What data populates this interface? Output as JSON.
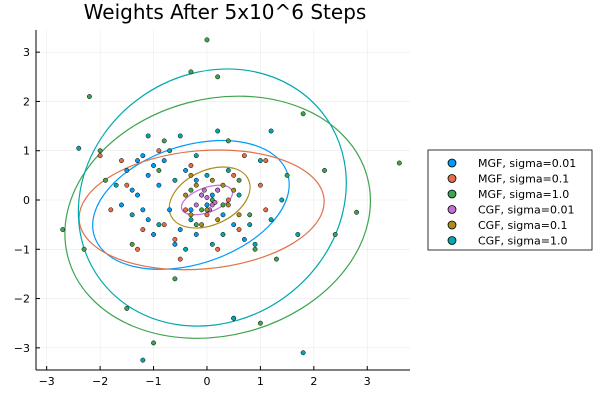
{
  "chart_data": {
    "type": "scatter",
    "title": "Weights After 5x10^6 Steps",
    "xlabel": "",
    "ylabel": "",
    "xlim": [
      -3.2,
      3.8
    ],
    "ylim": [
      -3.45,
      3.45
    ],
    "xticks": [
      -3,
      -2,
      -1,
      0,
      1,
      2,
      3
    ],
    "yticks": [
      -3,
      -2,
      -1,
      0,
      1,
      2,
      3
    ],
    "grid": true,
    "legend_position": "right",
    "series": [
      {
        "name": "MGF, sigma=0.01",
        "color": "#009AFA",
        "points": [
          [
            -1.2,
            0.9
          ],
          [
            -1.0,
            0.7
          ],
          [
            -1.1,
            0.5
          ],
          [
            -0.9,
            0.3
          ],
          [
            -1.3,
            0.1
          ],
          [
            -0.7,
            -0.2
          ],
          [
            -1.1,
            -0.4
          ],
          [
            -0.5,
            -0.6
          ],
          [
            -0.3,
            -0.2
          ],
          [
            -0.8,
            0.8
          ],
          [
            -0.4,
            0.6
          ],
          [
            -0.2,
            0.4
          ],
          [
            0.0,
            -0.1
          ],
          [
            0.1,
            0.1
          ],
          [
            0.3,
            -0.3
          ],
          [
            -1.5,
            0.6
          ],
          [
            -1.4,
            0.2
          ],
          [
            -1.6,
            -0.1
          ],
          [
            -1.0,
            -0.7
          ],
          [
            -0.6,
            -0.9
          ],
          [
            0.5,
            -0.5
          ],
          [
            0.7,
            -0.8
          ],
          [
            -0.2,
            -0.7
          ],
          [
            -1.3,
            0.8
          ],
          [
            -1.2,
            -0.2
          ]
        ],
        "ellipse": {
          "center": [
            -0.3,
            -0.1
          ],
          "rx": 1.9,
          "ry": 1.2,
          "angle_deg": -18
        }
      },
      {
        "name": "MGF, sigma=0.1",
        "color": "#E36F47",
        "points": [
          [
            -1.5,
            0.3
          ],
          [
            -1.8,
            -0.2
          ],
          [
            -1.2,
            -0.6
          ],
          [
            -0.6,
            -0.8
          ],
          [
            0.2,
            -1.0
          ],
          [
            0.6,
            -0.6
          ],
          [
            1.1,
            -0.2
          ],
          [
            1.0,
            0.3
          ],
          [
            0.5,
            0.5
          ],
          [
            -0.3,
            0.7
          ],
          [
            -0.9,
            1.0
          ],
          [
            -1.6,
            0.8
          ],
          [
            0.2,
            0.2
          ],
          [
            0.0,
            -0.3
          ],
          [
            -0.4,
            -0.2
          ],
          [
            -2.0,
            0.9
          ],
          [
            -1.3,
            -1.0
          ],
          [
            1.1,
            0.8
          ],
          [
            0.7,
            0.9
          ],
          [
            -0.5,
            -1.2
          ],
          [
            0.4,
            0.0
          ],
          [
            -0.1,
            0.1
          ],
          [
            -0.8,
            -0.5
          ]
        ],
        "ellipse": {
          "center": [
            -0.1,
            -0.2
          ],
          "rx": 2.3,
          "ry": 1.2,
          "angle_deg": -5
        }
      },
      {
        "name": "MGF, sigma=1.0",
        "color": "#3EA44E",
        "points": [
          [
            -2.2,
            2.1
          ],
          [
            -2.7,
            -0.6
          ],
          [
            -2.0,
            1.0
          ],
          [
            -1.5,
            -2.2
          ],
          [
            -1.0,
            -2.9
          ],
          [
            -0.3,
            2.6
          ],
          [
            0.0,
            3.25
          ],
          [
            0.2,
            2.5
          ],
          [
            0.5,
            -2.4
          ],
          [
            1.0,
            -2.5
          ],
          [
            1.8,
            1.75
          ],
          [
            2.2,
            0.6
          ],
          [
            2.4,
            -0.7
          ],
          [
            2.8,
            -0.25
          ],
          [
            3.6,
            0.75
          ],
          [
            -0.8,
            1.2
          ],
          [
            -2.3,
            -1.0
          ],
          [
            0.4,
            1.2
          ],
          [
            1.3,
            -1.2
          ],
          [
            -1.4,
            -0.9
          ],
          [
            0.8,
            -0.3
          ],
          [
            -0.6,
            -1.6
          ],
          [
            1.5,
            0.5
          ],
          [
            -1.9,
            0.4
          ],
          [
            0.1,
            0.0
          ],
          [
            0.3,
            -0.1
          ],
          [
            0.6,
            0.4
          ],
          [
            -0.3,
            0.2
          ],
          [
            -0.1,
            -0.2
          ],
          [
            -0.9,
            0.6
          ],
          [
            -0.2,
            -0.5
          ],
          [
            0.9,
            -1.0
          ]
        ],
        "ellipse": {
          "center": [
            0.2,
            -0.35
          ],
          "rx": 2.9,
          "ry": 2.4,
          "angle_deg": -15
        }
      },
      {
        "name": "CGF, sigma=0.01",
        "color": "#C271D2",
        "points": [
          [
            0.0,
            0.05
          ],
          [
            0.1,
            -0.1
          ],
          [
            -0.1,
            0.1
          ],
          [
            0.2,
            0.2
          ],
          [
            -0.2,
            -0.1
          ],
          [
            0.05,
            -0.2
          ],
          [
            -0.05,
            0.2
          ],
          [
            0.15,
            -0.05
          ]
        ],
        "ellipse": {
          "center": [
            0.0,
            0.0
          ],
          "rx": 0.5,
          "ry": 0.25,
          "angle_deg": -20
        }
      },
      {
        "name": "CGF, sigma=0.1",
        "color": "#AC8D18",
        "points": [
          [
            0.1,
            0.4
          ],
          [
            -0.3,
            0.5
          ],
          [
            0.4,
            -0.1
          ],
          [
            0.2,
            -0.4
          ],
          [
            -0.1,
            -0.5
          ],
          [
            -0.4,
            0.1
          ],
          [
            0.3,
            0.3
          ],
          [
            0.0,
            -0.2
          ],
          [
            0.5,
            0.2
          ],
          [
            -0.2,
            0.3
          ],
          [
            0.6,
            -0.3
          ],
          [
            -0.3,
            -0.3
          ]
        ],
        "ellipse": {
          "center": [
            0.05,
            0.05
          ],
          "rx": 0.8,
          "ry": 0.55,
          "angle_deg": -25
        }
      },
      {
        "name": "CGF, sigma=1.0",
        "color": "#00A9AD",
        "points": [
          [
            -1.1,
            1.3
          ],
          [
            -0.7,
            1.0
          ],
          [
            -0.2,
            0.9
          ],
          [
            0.4,
            0.6
          ],
          [
            1.0,
            0.8
          ],
          [
            1.4,
            0.0
          ],
          [
            1.2,
            -0.4
          ],
          [
            0.8,
            -0.5
          ],
          [
            0.1,
            -0.9
          ],
          [
            -0.4,
            -1.0
          ],
          [
            -0.9,
            -0.5
          ],
          [
            -1.4,
            -0.3
          ],
          [
            -1.7,
            0.3
          ],
          [
            -2.4,
            1.05
          ],
          [
            0.5,
            -2.4
          ],
          [
            1.8,
            -3.1
          ],
          [
            -1.2,
            -3.25
          ],
          [
            0.3,
            -0.7
          ],
          [
            -0.6,
            0.4
          ],
          [
            0.6,
            0.1
          ],
          [
            -0.3,
            -0.4
          ],
          [
            1.2,
            1.4
          ],
          [
            0.9,
            -0.9
          ],
          [
            -0.5,
            1.3
          ],
          [
            0.2,
            1.4
          ],
          [
            1.7,
            -0.7
          ],
          [
            0.0,
            0.5
          ]
        ],
        "ellipse": {
          "center": [
            0.1,
            0.05
          ],
          "rx": 2.6,
          "ry": 2.5,
          "angle_deg": -35
        }
      }
    ]
  }
}
